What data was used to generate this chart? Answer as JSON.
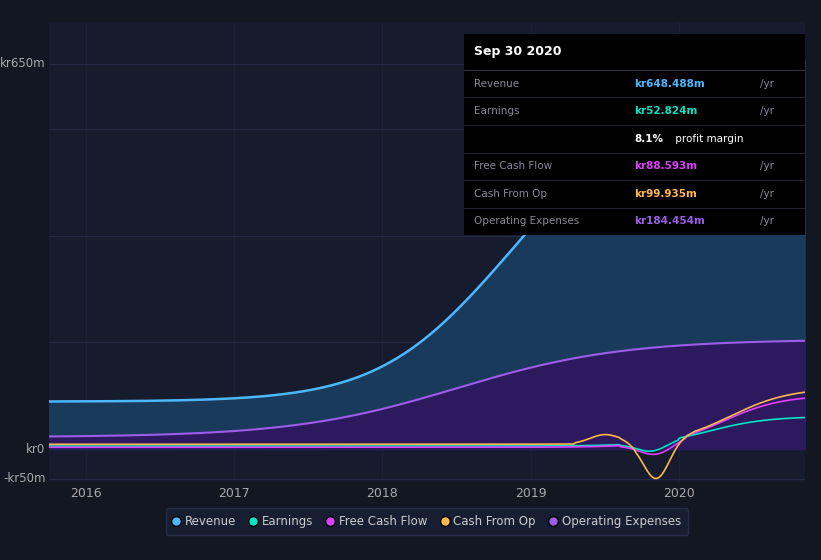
{
  "bg_color": "#131722",
  "plot_bg_color": "#161b2e",
  "grid_color": "#2a3350",
  "ylim": [
    -55,
    720
  ],
  "xlim_start": 2015.75,
  "xlim_end": 2020.85,
  "xticks": [
    2016,
    2017,
    2018,
    2019,
    2020
  ],
  "legend": [
    {
      "label": "Revenue",
      "color": "#4cb8ff"
    },
    {
      "label": "Earnings",
      "color": "#00e5c8"
    },
    {
      "label": "Free Cash Flow",
      "color": "#e040fb"
    },
    {
      "label": "Cash From Op",
      "color": "#ffb74d"
    },
    {
      "label": "Operating Expenses",
      "color": "#9c5de8"
    }
  ],
  "revenue_color": "#4cb8ff",
  "revenue_fill": "#1a3a5c",
  "earnings_color": "#00e5c8",
  "fcf_color": "#e040fb",
  "cashfromop_color": "#ffb74d",
  "opex_color": "#9c5de8",
  "opex_fill": "#2d1a5e",
  "tooltip_title": "Sep 30 2020",
  "tooltip_rows": [
    {
      "label": "Revenue",
      "value": "kr648.488m",
      "unit": "/yr",
      "color": "#4cb8ff"
    },
    {
      "label": "Earnings",
      "value": "kr52.824m",
      "unit": "/yr",
      "color": "#00e5c8"
    },
    {
      "label": "",
      "value": "8.1%",
      "extra": " profit margin",
      "color": "#ffffff"
    },
    {
      "label": "Free Cash Flow",
      "value": "kr88.593m",
      "unit": "/yr",
      "color": "#e040fb"
    },
    {
      "label": "Cash From Op",
      "value": "kr99.935m",
      "unit": "/yr",
      "color": "#ffb74d"
    },
    {
      "label": "Operating Expenses",
      "value": "kr184.454m",
      "unit": "/yr",
      "color": "#9c5de8"
    }
  ]
}
